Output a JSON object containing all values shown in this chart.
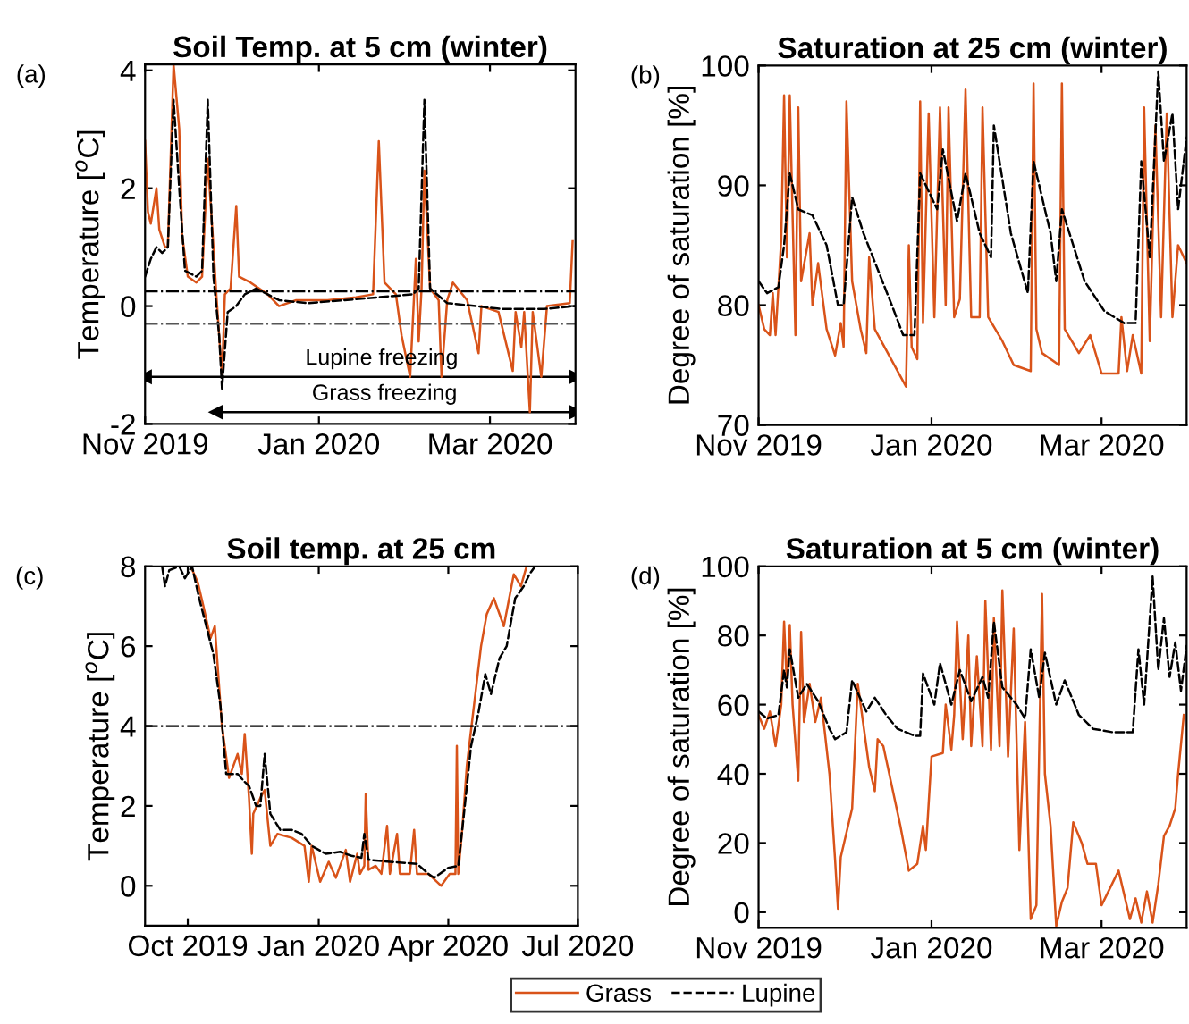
{
  "chart_data": [
    {
      "type": "line",
      "title": "Soil Temp. at 5 cm (winter)",
      "ylabel": "Temperature [$^{o}$C]",
      "annotations": [
        "(a)",
        {
          "text": "Lupine freezing",
          "x": "2020-01-23",
          "y": -1.2
        },
        {
          "text": "Grass freezing",
          "x": "2020-01-24",
          "y": -1.8
        }
      ],
      "xlim": [
        "2019-11-01",
        "2020-03-31"
      ],
      "xticks": [
        {
          "value": "2019-11-01",
          "label": "Nov 2019"
        },
        {
          "value": "2020-01-01",
          "label": "Jan 2020"
        },
        {
          "value": "2020-03-01",
          "label": "Mar 2020"
        }
      ],
      "ylim": [
        -2,
        4.1
      ],
      "yticks": [
        -2,
        0,
        2,
        4
      ],
      "grid": false,
      "legend": "bottom",
      "ref_lines": [
        {
          "axis": "y",
          "value": 0.25,
          "color": "#000000",
          "line_style": "dashdot"
        },
        {
          "axis": "y",
          "value": -0.3,
          "color": "#555555",
          "line_style": "dashdot"
        }
      ],
      "series": [
        {
          "type": "line",
          "color": "#000000",
          "line_style": "solid",
          "marker": "triangle",
          "x": [
            "2019-11-01",
            "2020-03-31"
          ],
          "values": [
            -1.2,
            -1.2
          ]
        },
        {
          "type": "line",
          "color": "#000000",
          "line_style": "solid",
          "marker": "triangle",
          "x": [
            "2019-11-26",
            "2020-03-31"
          ],
          "values": [
            -1.8,
            -1.8
          ]
        },
        {
          "name": "Grass",
          "color": "#d95319",
          "line_style": "solid",
          "x": [
            "2019-11-01",
            "2019-11-02",
            "2019-11-03",
            "2019-11-05",
            "2019-11-06",
            "2019-11-08",
            "2019-11-09",
            "2019-11-11",
            "2019-11-13",
            "2019-11-14",
            "2019-11-16",
            "2019-11-19",
            "2019-11-21",
            "2019-11-23",
            "2019-11-25",
            "2019-11-26",
            "2019-11-28",
            "2019-11-29",
            "2019-12-01",
            "2019-12-03",
            "2019-12-04",
            "2019-12-08",
            "2019-12-14",
            "2019-12-18",
            "2019-12-24",
            "2020-01-04",
            "2020-01-14",
            "2020-01-20",
            "2020-01-22",
            "2020-01-24",
            "2020-01-28",
            "2020-01-30",
            "2020-02-02",
            "2020-02-04",
            "2020-02-05",
            "2020-02-06",
            "2020-02-07",
            "2020-02-09",
            "2020-02-12",
            "2020-02-13",
            "2020-02-15",
            "2020-02-17",
            "2020-02-22",
            "2020-02-26",
            "2020-02-27",
            "2020-03-04",
            "2020-03-09",
            "2020-03-10",
            "2020-03-12",
            "2020-03-13",
            "2020-03-15",
            "2020-03-16",
            "2020-03-19",
            "2020-03-21",
            "2020-03-29",
            "2020-03-30"
          ],
          "values": [
            2.8,
            1.6,
            1.4,
            2.0,
            1.3,
            1.0,
            1.0,
            4.1,
            3.0,
            1.2,
            0.5,
            0.4,
            0.5,
            2.5,
            1.0,
            0.2,
            -1.2,
            0.2,
            0.3,
            1.7,
            0.5,
            0.4,
            0.2,
            0.0,
            0.1,
            0.1,
            0.15,
            0.2,
            2.8,
            0.4,
            0.2,
            -0.5,
            -1.2,
            0.8,
            -0.6,
            0.3,
            2.3,
            0.3,
            0.1,
            -1.2,
            0.1,
            0.4,
            0.1,
            -0.8,
            0.0,
            -0.1,
            -1.1,
            -0.1,
            -0.7,
            -0.1,
            -1.8,
            -0.1,
            -1.2,
            0.0,
            0.05,
            1.1
          ]
        },
        {
          "name": "Lupine",
          "color": "#000000",
          "line_style": "dashed",
          "x": [
            "2019-11-01",
            "2019-11-03",
            "2019-11-05",
            "2019-11-07",
            "2019-11-09",
            "2019-11-11",
            "2019-11-13",
            "2019-11-15",
            "2019-11-19",
            "2019-11-21",
            "2019-11-23",
            "2019-11-25",
            "2019-11-27",
            "2019-11-28",
            "2019-11-30",
            "2019-12-03",
            "2019-12-06",
            "2019-12-10",
            "2019-12-18",
            "2019-12-28",
            "2020-01-10",
            "2020-01-22",
            "2020-02-03",
            "2020-02-05",
            "2020-02-07",
            "2020-02-09",
            "2020-02-15",
            "2020-02-25",
            "2020-03-05",
            "2020-03-20",
            "2020-03-31"
          ],
          "values": [
            0.5,
            0.8,
            1.0,
            0.9,
            1.0,
            3.5,
            2.0,
            0.6,
            0.5,
            0.6,
            3.5,
            0.5,
            -0.5,
            -1.4,
            -0.1,
            0.0,
            0.2,
            0.3,
            0.1,
            0.05,
            0.1,
            0.15,
            0.2,
            0.3,
            3.5,
            0.3,
            0.05,
            0.0,
            -0.05,
            -0.05,
            0.0
          ]
        }
      ]
    },
    {
      "type": "line",
      "title": "Saturation at 25 cm (winter)",
      "ylabel": "Degree of saturation [%]",
      "annotations": [
        "(b)"
      ],
      "xlim": [
        "2019-11-01",
        "2020-03-31"
      ],
      "xticks": [
        {
          "value": "2019-11-01",
          "label": "Nov 2019"
        },
        {
          "value": "2020-01-01",
          "label": "Jan 2020"
        },
        {
          "value": "2020-03-01",
          "label": "Mar 2020"
        }
      ],
      "ylim": [
        70,
        100
      ],
      "yticks": [
        70,
        80,
        90,
        100
      ],
      "grid": false,
      "legend": "bottom",
      "series": [
        {
          "name": "Grass",
          "color": "#d95319",
          "line_style": "solid",
          "x": [
            "2019-11-01",
            "2019-11-03",
            "2019-11-05",
            "2019-11-06",
            "2019-11-07",
            "2019-11-09",
            "2019-11-10",
            "2019-11-11",
            "2019-11-12",
            "2019-11-14",
            "2019-11-15",
            "2019-11-16",
            "2019-11-19",
            "2019-11-20",
            "2019-11-22",
            "2019-11-25",
            "2019-11-28",
            "2019-11-30",
            "2019-12-01",
            "2019-12-02",
            "2019-12-04",
            "2019-12-07",
            "2019-12-09",
            "2019-12-10",
            "2019-12-12",
            "2019-12-23",
            "2019-12-24",
            "2019-12-25",
            "2019-12-27",
            "2019-12-28",
            "2019-12-29",
            "2019-12-31",
            "2020-01-02",
            "2020-01-04",
            "2020-01-06",
            "2020-01-07",
            "2020-01-09",
            "2020-01-11",
            "2020-01-13",
            "2020-01-15",
            "2020-01-18",
            "2020-01-19",
            "2020-01-21",
            "2020-01-26",
            "2020-01-30",
            "2020-02-05",
            "2020-02-06",
            "2020-02-07",
            "2020-02-09",
            "2020-02-15",
            "2020-02-16",
            "2020-02-17",
            "2020-02-22",
            "2020-02-26",
            "2020-03-01",
            "2020-03-07",
            "2020-03-08",
            "2020-03-10",
            "2020-03-12",
            "2020-03-15",
            "2020-03-16",
            "2020-03-18",
            "2020-03-20",
            "2020-03-22",
            "2020-03-24",
            "2020-03-26",
            "2020-03-28",
            "2020-03-31"
          ],
          "values": [
            80,
            78,
            77.5,
            81,
            77.5,
            85.5,
            97.5,
            84,
            97.5,
            77.5,
            96.5,
            82,
            86,
            80,
            83.5,
            78,
            75.8,
            78.5,
            76.5,
            97,
            82,
            78,
            76,
            84,
            78,
            73.2,
            85,
            76.5,
            75.5,
            97,
            78.5,
            96,
            79,
            96.5,
            80,
            96.5,
            79,
            80.5,
            98,
            79,
            79,
            96.5,
            79,
            77,
            75,
            74.5,
            98.5,
            78,
            76,
            75,
            98.5,
            78,
            76,
            77.5,
            74.3,
            74.3,
            79,
            74.5,
            77.5,
            74.3,
            96.5,
            77,
            95,
            79,
            96,
            79,
            85,
            83.5
          ]
        },
        {
          "name": "Lupine",
          "color": "#000000",
          "line_style": "dashed",
          "x": [
            "2019-11-01",
            "2019-11-04",
            "2019-11-08",
            "2019-11-10",
            "2019-11-12",
            "2019-11-15",
            "2019-11-20",
            "2019-11-25",
            "2019-11-29",
            "2019-12-01",
            "2019-12-04",
            "2019-12-08",
            "2019-12-13",
            "2019-12-18",
            "2019-12-22",
            "2019-12-26",
            "2019-12-28",
            "2020-01-03",
            "2020-01-05",
            "2020-01-10",
            "2020-01-13",
            "2020-01-18",
            "2020-01-22",
            "2020-01-23",
            "2020-01-29",
            "2020-02-04",
            "2020-02-06",
            "2020-02-12",
            "2020-02-14",
            "2020-02-16",
            "2020-02-24",
            "2020-03-02",
            "2020-03-09",
            "2020-03-13",
            "2020-03-15",
            "2020-03-18",
            "2020-03-21",
            "2020-03-23",
            "2020-03-26",
            "2020-03-28",
            "2020-03-31"
          ],
          "values": [
            82,
            81,
            81.5,
            85,
            91,
            88,
            87.5,
            85,
            80,
            80,
            89,
            86,
            83,
            80,
            77.5,
            77.5,
            91,
            88,
            93,
            87,
            91,
            86,
            84,
            95,
            86,
            81,
            92,
            86,
            82,
            88,
            82,
            79.5,
            78.5,
            78.5,
            92,
            84,
            99.5,
            92,
            96,
            88,
            94
          ]
        }
      ]
    },
    {
      "type": "line",
      "title": "Soil temp. at 25 cm",
      "ylabel": "Temperature [$^{o}$C]",
      "annotations": [
        "(c)"
      ],
      "xlim": [
        "2019-09-01",
        "2020-07-01"
      ],
      "xticks": [
        {
          "value": "2019-10-01",
          "label": "Oct 2019"
        },
        {
          "value": "2020-01-01",
          "label": "Jan 2020"
        },
        {
          "value": "2020-04-01",
          "label": "Apr 2020"
        },
        {
          "value": "2020-07-01",
          "label": "Jul 2020"
        }
      ],
      "ylim": [
        -1,
        8
      ],
      "yticks": [
        0,
        2,
        4,
        6,
        8
      ],
      "grid": false,
      "legend": "bottom",
      "ref_lines": [
        {
          "axis": "y",
          "value": 4,
          "color": "#000000",
          "line_style": "dashdot"
        }
      ],
      "series": [
        {
          "name": "Grass",
          "color": "#d95319",
          "line_style": "solid",
          "x": [
            "2019-10-03",
            "2019-10-08",
            "2019-10-12",
            "2019-10-17",
            "2019-10-20",
            "2019-10-25",
            "2019-10-30",
            "2019-11-05",
            "2019-11-08",
            "2019-11-10",
            "2019-11-13",
            "2019-11-15",
            "2019-11-16",
            "2019-11-21",
            "2019-11-24",
            "2019-11-28",
            "2019-12-03",
            "2019-12-13",
            "2019-12-22",
            "2019-12-25",
            "2019-12-27",
            "2020-01-02",
            "2020-01-08",
            "2020-01-13",
            "2020-01-20",
            "2020-01-23",
            "2020-01-28",
            "2020-01-30",
            "2020-02-02",
            "2020-02-03",
            "2020-02-05",
            "2020-02-10",
            "2020-02-14",
            "2020-02-18",
            "2020-02-20",
            "2020-02-25",
            "2020-02-27",
            "2020-03-05",
            "2020-03-08",
            "2020-03-10",
            "2020-03-18",
            "2020-03-27",
            "2020-04-02",
            "2020-04-06",
            "2020-04-07",
            "2020-04-08",
            "2020-04-11",
            "2020-04-14",
            "2020-04-19",
            "2020-04-24",
            "2020-04-28",
            "2020-05-03",
            "2020-05-10",
            "2020-05-17",
            "2020-05-22",
            "2020-05-26"
          ],
          "values": [
            8.0,
            7.6,
            7.0,
            6.2,
            6.5,
            4.0,
            2.7,
            3.3,
            2.8,
            3.8,
            2.2,
            0.8,
            1.8,
            2.2,
            2.4,
            1.0,
            1.3,
            1.2,
            1.0,
            0.1,
            1.0,
            0.1,
            0.6,
            0.2,
            0.9,
            0.1,
            0.8,
            0.3,
            0.5,
            2.3,
            0.4,
            0.5,
            0.3,
            1.5,
            0.3,
            1.3,
            0.3,
            0.3,
            1.4,
            0.3,
            0.3,
            0.0,
            0.3,
            0.3,
            3.5,
            0.3,
            1.5,
            3.0,
            4.5,
            6.0,
            6.8,
            7.2,
            6.5,
            7.8,
            7.5,
            8.0
          ]
        },
        {
          "name": "Lupine",
          "color": "#000000",
          "line_style": "dashed",
          "x": [
            "2019-09-13",
            "2019-09-15",
            "2019-09-18",
            "2019-09-25",
            "2019-09-29",
            "2019-10-04",
            "2019-10-09",
            "2019-10-14",
            "2019-10-19",
            "2019-10-24",
            "2019-10-28",
            "2019-11-05",
            "2019-11-10",
            "2019-11-13",
            "2019-11-18",
            "2019-11-21",
            "2019-11-24",
            "2019-11-28",
            "2019-12-05",
            "2019-12-13",
            "2019-12-20",
            "2019-12-27",
            "2020-01-06",
            "2020-01-16",
            "2020-01-24",
            "2020-01-31",
            "2020-02-02",
            "2020-02-05",
            "2020-02-20",
            "2020-03-10",
            "2020-03-18",
            "2020-03-22",
            "2020-04-01",
            "2020-04-08",
            "2020-04-12",
            "2020-04-17",
            "2020-04-22",
            "2020-04-27",
            "2020-05-01",
            "2020-05-07",
            "2020-05-12",
            "2020-05-18",
            "2020-05-24",
            "2020-05-28",
            "2020-06-01"
          ],
          "values": [
            8.0,
            7.5,
            7.9,
            8.0,
            7.7,
            8.0,
            7.2,
            6.5,
            5.8,
            4.5,
            2.8,
            2.8,
            2.6,
            2.5,
            2.0,
            2.0,
            3.3,
            1.8,
            1.4,
            1.4,
            1.3,
            1.0,
            0.8,
            0.85,
            0.75,
            0.7,
            1.3,
            0.65,
            0.6,
            0.55,
            0.3,
            0.2,
            0.45,
            0.5,
            1.8,
            3.5,
            4.3,
            5.3,
            4.8,
            5.7,
            6.0,
            7.2,
            7.5,
            7.8,
            8.0
          ]
        }
      ]
    },
    {
      "type": "line",
      "title": "Saturation at 5 cm (winter)",
      "ylabel": "Degree of saturation [%]",
      "annotations": [
        "(d)"
      ],
      "xlim": [
        "2019-11-01",
        "2020-03-31"
      ],
      "xticks": [
        {
          "value": "2019-11-01",
          "label": "Nov 2019"
        },
        {
          "value": "2020-01-01",
          "label": "Jan 2020"
        },
        {
          "value": "2020-03-01",
          "label": "Mar 2020"
        }
      ],
      "ylim": [
        -4.5,
        100
      ],
      "yticks": [
        0,
        20,
        40,
        60,
        80,
        100
      ],
      "grid": false,
      "legend": "bottom",
      "series": [
        {
          "name": "Grass",
          "color": "#d95319",
          "line_style": "solid",
          "x": [
            "2019-11-01",
            "2019-11-03",
            "2019-11-05",
            "2019-11-07",
            "2019-11-09",
            "2019-11-10",
            "2019-11-11",
            "2019-11-12",
            "2019-11-13",
            "2019-11-15",
            "2019-11-16",
            "2019-11-17",
            "2019-11-19",
            "2019-11-21",
            "2019-11-23",
            "2019-11-26",
            "2019-11-28",
            "2019-11-29",
            "2019-11-30",
            "2019-12-04",
            "2019-12-06",
            "2019-12-10",
            "2019-12-12",
            "2019-12-13",
            "2019-12-15",
            "2019-12-21",
            "2019-12-24",
            "2019-12-27",
            "2019-12-29",
            "2019-12-30",
            "2020-01-01",
            "2020-01-05",
            "2020-01-06",
            "2020-01-08",
            "2020-01-09",
            "2020-01-10",
            "2020-01-12",
            "2020-01-14",
            "2020-01-15",
            "2020-01-17",
            "2020-01-19",
            "2020-01-20",
            "2020-01-22",
            "2020-01-23",
            "2020-01-25",
            "2020-01-26",
            "2020-01-28",
            "2020-01-30",
            "2020-02-01",
            "2020-02-03",
            "2020-02-05",
            "2020-02-07",
            "2020-02-09",
            "2020-02-10",
            "2020-02-12",
            "2020-02-14",
            "2020-02-16",
            "2020-02-18",
            "2020-02-20",
            "2020-02-23",
            "2020-02-25",
            "2020-02-28",
            "2020-03-01",
            "2020-03-07",
            "2020-03-11",
            "2020-03-13",
            "2020-03-15",
            "2020-03-17",
            "2020-03-19",
            "2020-03-21",
            "2020-03-23",
            "2020-03-25",
            "2020-03-27",
            "2020-03-28",
            "2020-03-30"
          ],
          "values": [
            57,
            53,
            58,
            48,
            60,
            84,
            65,
            83,
            60,
            38,
            81,
            55,
            66,
            55,
            62,
            40,
            15,
            1,
            16,
            30,
            66,
            42,
            35,
            50,
            48,
            25,
            12,
            14,
            25,
            18,
            45,
            46,
            60,
            47,
            57,
            84,
            50,
            80,
            48,
            74,
            48,
            90,
            47,
            85,
            48,
            93,
            45,
            82,
            18,
            55,
            -2,
            2,
            92,
            40,
            25,
            -4,
            3,
            7,
            26,
            20,
            14,
            14,
            2,
            12,
            -2,
            4,
            -3,
            6,
            -3,
            8,
            22,
            25,
            30,
            40,
            57
          ]
        },
        {
          "name": "Lupine",
          "color": "#000000",
          "line_style": "dashed",
          "x": [
            "2019-11-01",
            "2019-11-04",
            "2019-11-08",
            "2019-11-10",
            "2019-11-11",
            "2019-11-12",
            "2019-11-15",
            "2019-11-18",
            "2019-11-22",
            "2019-11-26",
            "2019-11-28",
            "2019-12-02",
            "2019-12-04",
            "2019-12-09",
            "2019-12-12",
            "2019-12-16",
            "2019-12-20",
            "2019-12-26",
            "2019-12-28",
            "2019-12-29",
            "2020-01-02",
            "2020-01-04",
            "2020-01-08",
            "2020-01-11",
            "2020-01-15",
            "2020-01-19",
            "2020-01-21",
            "2020-01-23",
            "2020-01-26",
            "2020-01-31",
            "2020-02-03",
            "2020-02-05",
            "2020-02-08",
            "2020-02-10",
            "2020-02-14",
            "2020-02-17",
            "2020-02-22",
            "2020-02-27",
            "2020-03-05",
            "2020-03-12",
            "2020-03-14",
            "2020-03-16",
            "2020-03-19",
            "2020-03-21",
            "2020-03-23",
            "2020-03-25",
            "2020-03-27",
            "2020-03-29",
            "2020-03-31"
          ],
          "values": [
            58,
            56,
            57,
            70,
            65,
            76,
            62,
            66,
            61,
            53,
            50,
            52,
            67,
            58,
            62,
            57,
            53,
            51,
            51,
            69,
            60,
            72,
            60,
            70,
            61,
            68,
            62,
            84,
            65,
            60,
            56,
            76,
            62,
            75,
            60,
            67,
            57,
            53,
            52,
            52,
            76,
            60,
            97,
            70,
            85,
            68,
            78,
            64,
            77
          ]
        }
      ]
    }
  ]
}
